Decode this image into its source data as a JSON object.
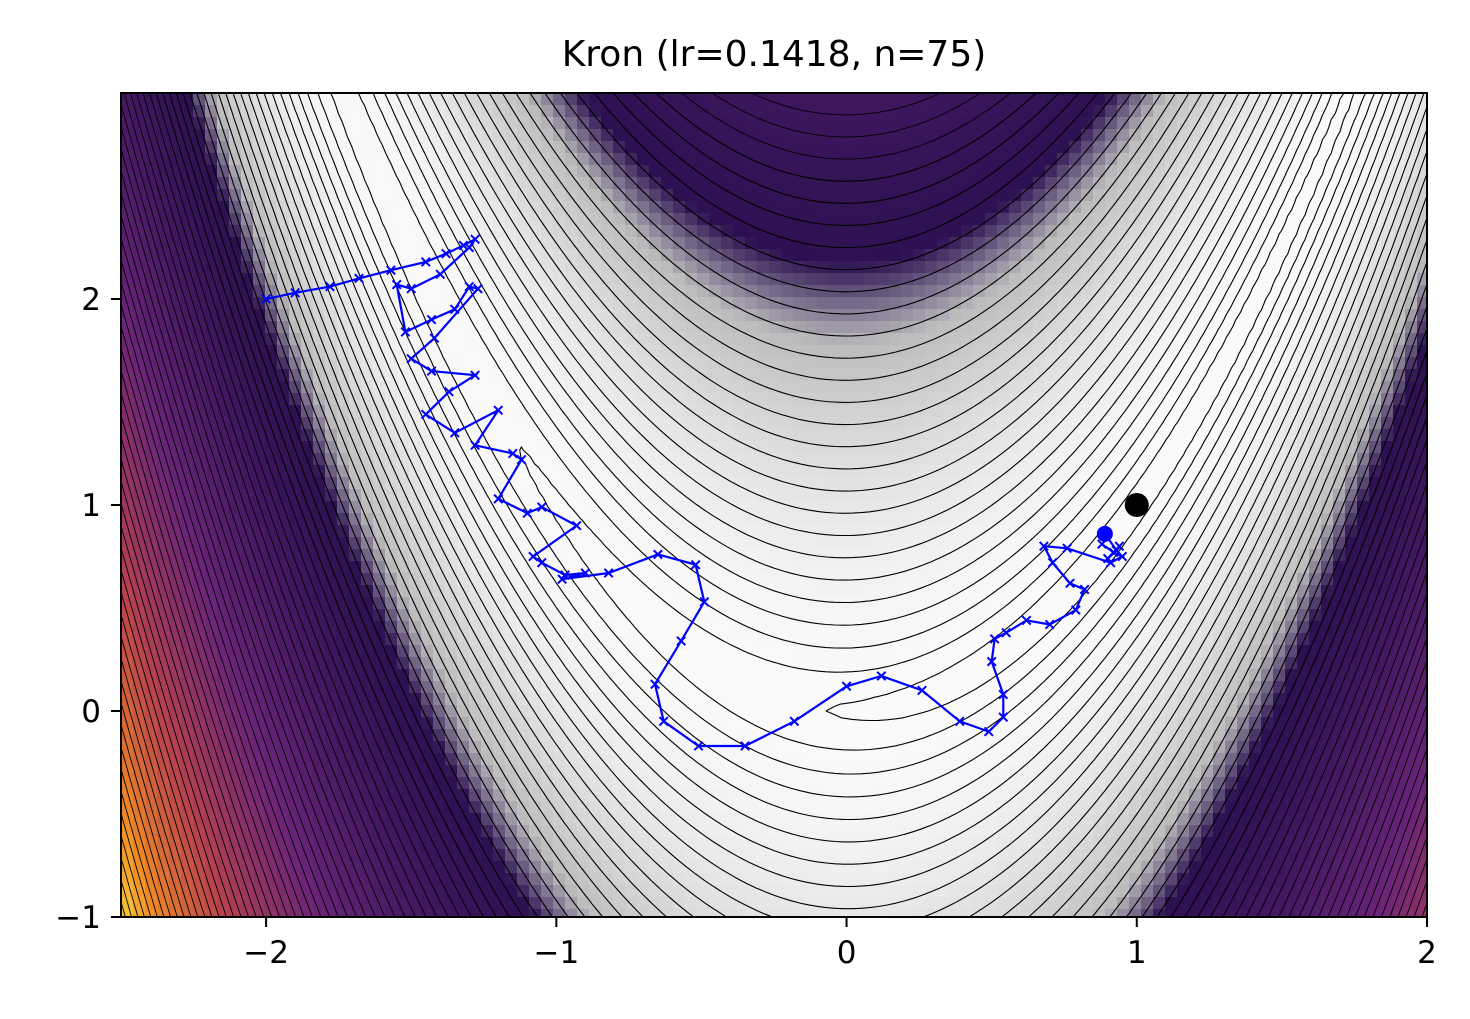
{
  "chart_data": {
    "type": "contour+line",
    "title": "Kron (lr=0.1418, n=75)",
    "xlabel": "",
    "ylabel": "",
    "xlim": [
      -2.5,
      2.0
    ],
    "ylim": [
      -1.0,
      3.0
    ],
    "x_ticks": [
      -2,
      -1,
      0,
      1,
      2
    ],
    "x_tick_labels": [
      "−2",
      "−1",
      "0",
      "1",
      "2"
    ],
    "y_ticks": [
      -1,
      0,
      1,
      2
    ],
    "y_tick_labels": [
      "−1",
      "0",
      "1",
      "2"
    ],
    "grid": false,
    "legend": false,
    "background": {
      "function": "rosenbrock",
      "colormap": [
        "#fafafa",
        "#e6e6e6",
        "#bcbcbc",
        "#2c1152",
        "#6a2478",
        "#b8424f",
        "#ef8a24",
        "#f7d03c"
      ]
    },
    "contour_color": "#000000",
    "optimum": {
      "x": 1.0,
      "y": 1.0,
      "color": "#000000"
    },
    "series": [
      {
        "color": "#0000ff",
        "marker": "x",
        "x": [
          -2.0,
          -1.9,
          -1.78,
          -1.68,
          -1.57,
          -1.45,
          -1.38,
          -1.32,
          -1.28,
          -1.3,
          -1.4,
          -1.5,
          -1.55,
          -1.52,
          -1.43,
          -1.35,
          -1.3,
          -1.27,
          -1.42,
          -1.5,
          -1.43,
          -1.28,
          -1.37,
          -1.45,
          -1.35,
          -1.2,
          -1.28,
          -1.15,
          -1.12,
          -1.2,
          -1.1,
          -1.05,
          -0.93,
          -1.08,
          -1.05,
          -0.97,
          -0.9,
          -0.98,
          -0.82,
          -0.65,
          -0.52,
          -0.49,
          -0.57,
          -0.66,
          -0.63,
          -0.51,
          -0.35,
          -0.18,
          0.0,
          0.12,
          0.26,
          0.39,
          0.49,
          0.54,
          0.54,
          0.5,
          0.51,
          0.55,
          0.62,
          0.7,
          0.79,
          0.82,
          0.77,
          0.71,
          0.68,
          0.76,
          0.91,
          0.95,
          0.92,
          0.88,
          0.92,
          0.94,
          0.9,
          0.93,
          0.89
        ],
        "y": [
          2.0,
          2.03,
          2.06,
          2.1,
          2.14,
          2.18,
          2.22,
          2.26,
          2.29,
          2.25,
          2.12,
          2.05,
          2.07,
          1.84,
          1.9,
          1.95,
          2.06,
          2.05,
          1.81,
          1.71,
          1.65,
          1.63,
          1.55,
          1.44,
          1.35,
          1.46,
          1.29,
          1.25,
          1.22,
          1.03,
          0.96,
          0.99,
          0.9,
          0.75,
          0.72,
          0.66,
          0.67,
          0.64,
          0.67,
          0.76,
          0.71,
          0.53,
          0.34,
          0.13,
          -0.05,
          -0.17,
          -0.17,
          -0.05,
          0.12,
          0.17,
          0.1,
          -0.05,
          -0.1,
          -0.03,
          0.08,
          0.24,
          0.35,
          0.38,
          0.44,
          0.42,
          0.49,
          0.59,
          0.62,
          0.72,
          0.8,
          0.79,
          0.72,
          0.75,
          0.77,
          0.81,
          0.77,
          0.8,
          0.74,
          0.78,
          0.86
        ]
      }
    ]
  }
}
